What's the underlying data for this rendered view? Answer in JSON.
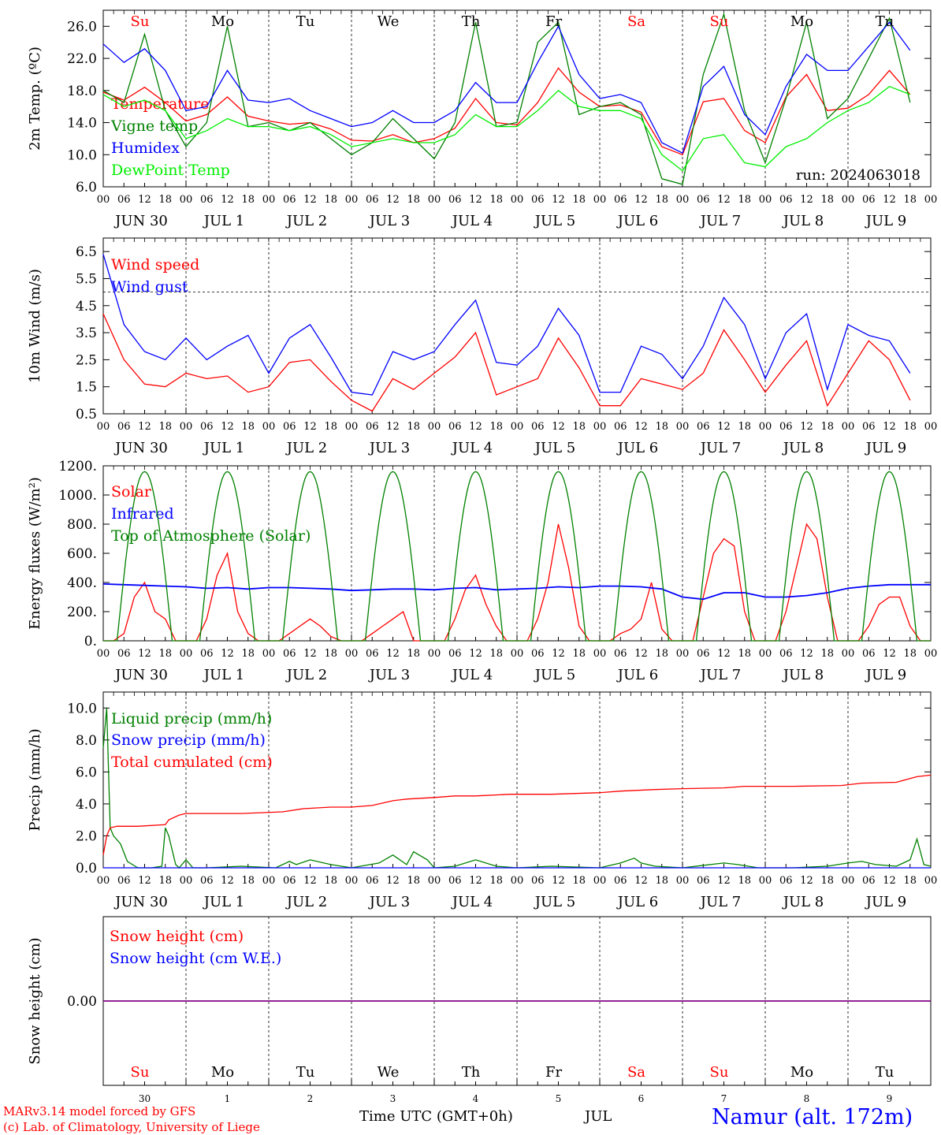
{
  "run_label": "run: 2024063018",
  "day_names": [
    "Su",
    "Mo",
    "Tu",
    "We",
    "Th",
    "Fr",
    "Sa",
    "Su",
    "Mo",
    "Tu"
  ],
  "weekend_days": [
    0,
    6,
    7
  ],
  "day_axis_labels": [
    "JUN 30",
    "JUL  1",
    "JUL  2",
    "JUL  3",
    "JUL  4",
    "JUL  5",
    "JUL  6",
    "JUL  7",
    "JUL  8",
    "JUL  9"
  ],
  "hour_ticks": [
    "00",
    "06",
    "12",
    "18"
  ],
  "end_tick": "00",
  "bottom_day_numbers": [
    "30",
    "1",
    "2",
    "3",
    "4",
    "5",
    "6",
    "7",
    "8",
    "9"
  ],
  "footer": {
    "line1": "MARv3.14 model forced by GFS",
    "line2": "(c) Lab. of Climatology, University of Liege",
    "axis_title": "Time UTC (GMT+0h)",
    "month": "JUL",
    "station": "Namur (alt. 172m)"
  },
  "colors": {
    "red": "#ff0000",
    "green": "#008000",
    "blue": "#0000ff",
    "lightgreen": "#00ee00",
    "purple": "#800080"
  },
  "chart_data": [
    {
      "type": "line",
      "ylabel": "2m Temp. (ºC)",
      "ylim": [
        6,
        28
      ],
      "yticks": [
        6.0,
        10.0,
        14.0,
        18.0,
        22.0,
        26.0
      ],
      "ytick_decimals": 1,
      "x_unit": "hours since Jun 30 00 UTC",
      "series": [
        {
          "name": "Temperature",
          "color": "#ff0000",
          "x": [
            0,
            6,
            12,
            18,
            24,
            30,
            36,
            42,
            48,
            54,
            60,
            66,
            72,
            78,
            84,
            90,
            96,
            102,
            108,
            114,
            120,
            126,
            132,
            138,
            144,
            150,
            156,
            162,
            168,
            174,
            180,
            186,
            192,
            198,
            204,
            210,
            216,
            222,
            228,
            234
          ],
          "y": [
            17.8,
            16.8,
            18.4,
            16.5,
            14.2,
            15.0,
            17.2,
            14.8,
            14.2,
            13.8,
            14.0,
            13.2,
            11.8,
            11.7,
            12.5,
            11.5,
            12.0,
            13.3,
            17.0,
            14.0,
            13.7,
            16.5,
            20.8,
            17.8,
            16.0,
            16.2,
            15.3,
            11.0,
            10.0,
            16.6,
            17.0,
            13.0,
            11.5,
            17.2,
            20.0,
            15.5,
            15.8,
            17.5,
            20.5,
            17.5
          ]
        },
        {
          "name": "Vigne temp",
          "color": "#008000",
          "x": [
            0,
            6,
            12,
            18,
            24,
            30,
            36,
            42,
            48,
            54,
            60,
            66,
            72,
            78,
            84,
            90,
            96,
            102,
            108,
            114,
            120,
            126,
            132,
            138,
            144,
            150,
            156,
            162,
            168,
            174,
            180,
            186,
            192,
            198,
            204,
            210,
            216,
            222,
            228,
            234
          ],
          "y": [
            18.0,
            16.5,
            25.0,
            15.5,
            11.0,
            14.0,
            26.0,
            13.5,
            14.0,
            13.0,
            14.0,
            12.0,
            10.0,
            11.5,
            14.5,
            12.0,
            9.5,
            14.0,
            26.5,
            13.5,
            14.0,
            24.0,
            26.5,
            15.0,
            16.0,
            16.5,
            15.0,
            7.0,
            6.3,
            20.0,
            27.5,
            15.5,
            9.0,
            17.0,
            26.5,
            14.5,
            17.0,
            22.0,
            27.0,
            16.5
          ]
        },
        {
          "name": "Humidex",
          "color": "#0000ff",
          "x": [
            0,
            6,
            12,
            18,
            24,
            30,
            36,
            42,
            48,
            54,
            60,
            66,
            72,
            78,
            84,
            90,
            96,
            102,
            108,
            114,
            120,
            126,
            132,
            138,
            144,
            150,
            156,
            162,
            168,
            174,
            180,
            186,
            192,
            198,
            204,
            210,
            216,
            222,
            228,
            234
          ],
          "y": [
            23.8,
            21.5,
            23.2,
            20.5,
            15.5,
            16.0,
            20.5,
            16.8,
            16.5,
            17.0,
            15.5,
            14.5,
            13.5,
            14.0,
            15.5,
            14.0,
            14.0,
            15.5,
            19.0,
            16.5,
            16.5,
            21.5,
            26.0,
            20.0,
            17.0,
            17.5,
            16.5,
            11.5,
            10.2,
            18.5,
            21.0,
            15.0,
            12.5,
            18.5,
            22.5,
            20.5,
            20.5,
            23.5,
            26.5,
            23.0
          ]
        },
        {
          "name": "DewPoint Temp",
          "color": "#00ee00",
          "x": [
            0,
            6,
            12,
            18,
            24,
            30,
            36,
            42,
            48,
            54,
            60,
            66,
            72,
            78,
            84,
            90,
            96,
            102,
            108,
            114,
            120,
            126,
            132,
            138,
            144,
            150,
            156,
            162,
            168,
            174,
            180,
            186,
            192,
            198,
            204,
            210,
            216,
            222,
            228,
            234
          ],
          "y": [
            17.5,
            16.0,
            16.8,
            15.5,
            12.0,
            13.0,
            14.5,
            13.5,
            13.5,
            13.0,
            13.5,
            12.5,
            11.0,
            11.5,
            12.0,
            11.5,
            11.5,
            12.5,
            15.0,
            13.5,
            13.5,
            15.5,
            18.0,
            16.0,
            15.5,
            15.5,
            14.5,
            10.0,
            8.0,
            12.0,
            12.5,
            9.0,
            8.5,
            11.0,
            12.0,
            14.0,
            15.5,
            16.5,
            18.5,
            17.5
          ]
        }
      ]
    },
    {
      "type": "line",
      "ylabel": "10m Wind (m/s)",
      "ylim": [
        0.5,
        7
      ],
      "yticks": [
        0.5,
        1.5,
        2.5,
        3.5,
        4.5,
        5.5,
        6.5
      ],
      "ytick_decimals": 1,
      "hline": 5,
      "series": [
        {
          "name": "Wind speed",
          "color": "#ff0000",
          "x": [
            0,
            6,
            12,
            18,
            24,
            30,
            36,
            42,
            48,
            54,
            60,
            66,
            72,
            78,
            84,
            90,
            96,
            102,
            108,
            114,
            120,
            126,
            132,
            138,
            144,
            150,
            156,
            162,
            168,
            174,
            180,
            186,
            192,
            198,
            204,
            210,
            216,
            222,
            228,
            234
          ],
          "y": [
            4.2,
            2.5,
            1.6,
            1.5,
            2.0,
            1.8,
            1.9,
            1.3,
            1.5,
            2.4,
            2.5,
            1.7,
            1.0,
            0.6,
            1.8,
            1.4,
            2.0,
            2.6,
            3.5,
            1.2,
            1.5,
            1.8,
            3.3,
            2.2,
            0.8,
            0.8,
            1.8,
            1.6,
            1.4,
            2.0,
            3.6,
            2.5,
            1.3,
            2.3,
            3.2,
            0.8,
            2.0,
            3.2,
            2.5,
            1.0
          ]
        },
        {
          "name": "Wind gust",
          "color": "#0000ff",
          "x": [
            0,
            6,
            12,
            18,
            24,
            30,
            36,
            42,
            48,
            54,
            60,
            66,
            72,
            78,
            84,
            90,
            96,
            102,
            108,
            114,
            120,
            126,
            132,
            138,
            144,
            150,
            156,
            162,
            168,
            174,
            180,
            186,
            192,
            198,
            204,
            210,
            216,
            222,
            228,
            234
          ],
          "y": [
            6.4,
            3.8,
            2.8,
            2.5,
            3.3,
            2.5,
            3.0,
            3.4,
            2.0,
            3.3,
            3.8,
            2.6,
            1.3,
            1.2,
            2.8,
            2.5,
            2.8,
            3.8,
            4.7,
            2.4,
            2.3,
            3.0,
            4.4,
            3.4,
            1.3,
            1.3,
            3.0,
            2.7,
            1.8,
            3.0,
            4.8,
            3.8,
            1.8,
            3.5,
            4.2,
            1.4,
            3.8,
            3.4,
            3.2,
            2.0
          ]
        }
      ]
    },
    {
      "type": "line",
      "ylabel": "Energy fluxes (W/m²)",
      "ylim": [
        0,
        1200
      ],
      "yticks": [
        0,
        200,
        400,
        600,
        800,
        1000,
        1200
      ],
      "ytick_decimals": 0,
      "ytick_suffix": ".",
      "series": [
        {
          "name": "Solar",
          "color": "#ff0000",
          "x": [
            0,
            3,
            6,
            9,
            12,
            15,
            18,
            21,
            24,
            27,
            30,
            33,
            36,
            39,
            42,
            45,
            48,
            51,
            54,
            57,
            60,
            63,
            66,
            69,
            72,
            75,
            78,
            81,
            84,
            87,
            90,
            93,
            96,
            99,
            102,
            105,
            108,
            111,
            114,
            117,
            120,
            123,
            126,
            129,
            132,
            135,
            138,
            141,
            144,
            147,
            150,
            153,
            156,
            159,
            162,
            165,
            168,
            171,
            174,
            177,
            180,
            183,
            186,
            189,
            192,
            195,
            198,
            201,
            204,
            207,
            210,
            213,
            216,
            219,
            222,
            225,
            228,
            231,
            234,
            237,
            240
          ],
          "y": [
            0,
            0,
            50,
            300,
            400,
            200,
            150,
            0,
            0,
            0,
            150,
            450,
            600,
            200,
            50,
            0,
            0,
            0,
            50,
            100,
            150,
            100,
            30,
            0,
            0,
            0,
            50,
            100,
            150,
            200,
            0,
            0,
            0,
            0,
            150,
            350,
            450,
            250,
            100,
            0,
            0,
            0,
            150,
            400,
            800,
            500,
            100,
            0,
            0,
            0,
            50,
            80,
            150,
            400,
            80,
            0,
            0,
            0,
            300,
            600,
            700,
            650,
            200,
            0,
            0,
            0,
            200,
            500,
            800,
            700,
            300,
            0,
            0,
            0,
            100,
            250,
            300,
            300,
            100,
            0,
            0
          ]
        },
        {
          "name": "Infrared",
          "color": "#0000ff",
          "x": [
            0,
            6,
            12,
            18,
            24,
            30,
            36,
            42,
            48,
            54,
            60,
            66,
            72,
            78,
            84,
            90,
            96,
            102,
            108,
            114,
            120,
            126,
            132,
            138,
            144,
            150,
            156,
            162,
            168,
            174,
            180,
            186,
            192,
            198,
            204,
            210,
            216,
            222,
            228,
            234,
            240
          ],
          "y": [
            390,
            385,
            380,
            375,
            370,
            360,
            365,
            355,
            365,
            365,
            360,
            355,
            345,
            350,
            355,
            355,
            350,
            360,
            365,
            350,
            355,
            360,
            370,
            365,
            375,
            375,
            370,
            355,
            300,
            285,
            330,
            330,
            300,
            300,
            310,
            330,
            360,
            375,
            385,
            385,
            385
          ]
        },
        {
          "name": "Top of Atmosphere (Solar)",
          "color": "#008000",
          "amplitude": 1160
        }
      ]
    },
    {
      "type": "line",
      "ylabel": "Precip (mm/h)",
      "ylim": [
        0,
        11
      ],
      "yticks": [
        0,
        2,
        4,
        6,
        8,
        10
      ],
      "ytick_decimals": 1,
      "series": [
        {
          "name": "Liquid precip (mm/h)",
          "color": "#008000",
          "x": [
            0,
            1,
            2,
            3,
            5,
            7,
            10,
            14,
            17,
            18,
            19,
            21,
            22,
            24,
            26,
            30,
            40,
            50,
            54,
            56,
            60,
            66,
            72,
            80,
            84,
            88,
            90,
            94,
            96,
            102,
            108,
            114,
            120,
            130,
            144,
            150,
            154,
            156,
            160,
            168,
            180,
            184,
            190,
            200,
            210,
            216,
            220,
            224,
            230,
            234,
            236,
            238,
            240
          ],
          "y": [
            7.5,
            10.0,
            2.5,
            2.0,
            1.5,
            0.4,
            0.0,
            0.0,
            0.1,
            2.5,
            2.0,
            0.2,
            0.0,
            0.5,
            0.0,
            0.0,
            0.1,
            0.0,
            0.4,
            0.2,
            0.5,
            0.2,
            0.0,
            0.3,
            0.8,
            0.2,
            1.0,
            0.5,
            0.0,
            0.1,
            0.5,
            0.1,
            0.0,
            0.1,
            0.0,
            0.3,
            0.6,
            0.3,
            0.1,
            0.0,
            0.3,
            0.2,
            0.0,
            0.0,
            0.1,
            0.3,
            0.4,
            0.2,
            0.1,
            0.5,
            1.8,
            0.2,
            0.1
          ]
        },
        {
          "name": "Snow precip (mm/h)",
          "color": "#0000ff",
          "x": [
            0,
            240
          ],
          "y": [
            0,
            0
          ]
        },
        {
          "name": "Total cumulated (cm)",
          "color": "#ff0000",
          "x": [
            0,
            1,
            2,
            4,
            10,
            18,
            19,
            22,
            24,
            40,
            52,
            58,
            66,
            72,
            78,
            80,
            84,
            88,
            96,
            102,
            108,
            118,
            130,
            144,
            150,
            160,
            168,
            180,
            186,
            200,
            214,
            216,
            220,
            230,
            236,
            240
          ],
          "y": [
            0.8,
            2.0,
            2.5,
            2.6,
            2.6,
            2.7,
            3.0,
            3.3,
            3.4,
            3.4,
            3.5,
            3.7,
            3.8,
            3.8,
            3.9,
            4.0,
            4.2,
            4.3,
            4.4,
            4.5,
            4.5,
            4.6,
            4.6,
            4.7,
            4.8,
            4.9,
            4.95,
            5.0,
            5.1,
            5.1,
            5.15,
            5.2,
            5.3,
            5.35,
            5.7,
            5.8
          ]
        }
      ]
    },
    {
      "type": "line",
      "ylabel": "Snow height (cm)",
      "ylim": [
        -1,
        1
      ],
      "yticks": [
        0.0
      ],
      "ytick_decimals": 2,
      "series": [
        {
          "name": "Snow height (cm)",
          "color": "#ff0000",
          "x": [
            0,
            240
          ],
          "y": [
            0,
            0
          ]
        },
        {
          "name": "Snow height (cm W.E.)",
          "color": "#0000ff",
          "x": [
            0,
            240
          ],
          "y": [
            0,
            0
          ]
        }
      ]
    }
  ]
}
